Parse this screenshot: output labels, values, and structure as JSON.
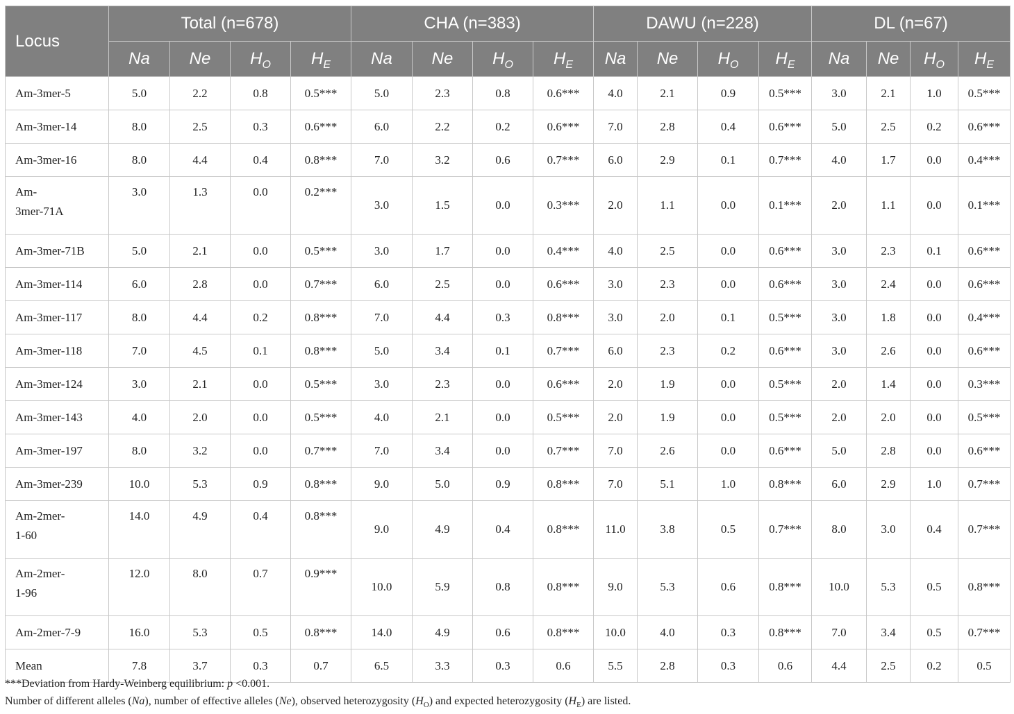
{
  "header": {
    "locus": "Locus",
    "groups": [
      "Total (n=678)",
      "CHA (n=383)",
      "DAWU (n=228)",
      "DL (n=67)"
    ],
    "sub": [
      {
        "main": "Na",
        "sub": ""
      },
      {
        "main": "Ne",
        "sub": ""
      },
      {
        "main": "H",
        "sub": "O"
      },
      {
        "main": "H",
        "sub": "E"
      }
    ]
  },
  "rows": [
    {
      "locus": "Am-3mer-5",
      "v": [
        "5.0",
        "2.2",
        "0.8",
        "0.5***",
        "5.0",
        "2.3",
        "0.8",
        "0.6***",
        "4.0",
        "2.1",
        "0.9",
        "0.5***",
        "3.0",
        "2.1",
        "1.0",
        "0.5***"
      ]
    },
    {
      "locus": "Am-3mer-14",
      "v": [
        "8.0",
        "2.5",
        "0.3",
        "0.6***",
        "6.0",
        "2.2",
        "0.2",
        "0.6***",
        "7.0",
        "2.8",
        "0.4",
        "0.6***",
        "5.0",
        "2.5",
        "0.2",
        "0.6***"
      ]
    },
    {
      "locus": "Am-3mer-16",
      "v": [
        "8.0",
        "4.4",
        "0.4",
        "0.8***",
        "7.0",
        "3.2",
        "0.6",
        "0.7***",
        "6.0",
        "2.9",
        "0.1",
        "0.7***",
        "4.0",
        "1.7",
        "0.0",
        "0.4***"
      ]
    },
    {
      "locus": "Am-\n3mer-71A",
      "v": [
        "3.0",
        "1.3",
        "0.0",
        "0.2***",
        "3.0",
        "1.5",
        "0.0",
        "0.3***",
        "2.0",
        "1.1",
        "0.0",
        "0.1***",
        "2.0",
        "1.1",
        "0.0",
        "0.1***"
      ]
    },
    {
      "locus": "Am-3mer-71B",
      "v": [
        "5.0",
        "2.1",
        "0.0",
        "0.5***",
        "3.0",
        "1.7",
        "0.0",
        "0.4***",
        "4.0",
        "2.5",
        "0.0",
        "0.6***",
        "3.0",
        "2.3",
        "0.1",
        "0.6***"
      ]
    },
    {
      "locus": "Am-3mer-114",
      "v": [
        "6.0",
        "2.8",
        "0.0",
        "0.7***",
        "6.0",
        "2.5",
        "0.0",
        "0.6***",
        "3.0",
        "2.3",
        "0.0",
        "0.6***",
        "3.0",
        "2.4",
        "0.0",
        "0.6***"
      ]
    },
    {
      "locus": "Am-3mer-117",
      "v": [
        "8.0",
        "4.4",
        "0.2",
        "0.8***",
        "7.0",
        "4.4",
        "0.3",
        "0.8***",
        "3.0",
        "2.0",
        "0.1",
        "0.5***",
        "3.0",
        "1.8",
        "0.0",
        "0.4***"
      ]
    },
    {
      "locus": "Am-3mer-118",
      "v": [
        "7.0",
        "4.5",
        "0.1",
        "0.8***",
        "5.0",
        "3.4",
        "0.1",
        "0.7***",
        "6.0",
        "2.3",
        "0.2",
        "0.6***",
        "3.0",
        "2.6",
        "0.0",
        "0.6***"
      ]
    },
    {
      "locus": "Am-3mer-124",
      "v": [
        "3.0",
        "2.1",
        "0.0",
        "0.5***",
        "3.0",
        "2.3",
        "0.0",
        "0.6***",
        "2.0",
        "1.9",
        "0.0",
        "0.5***",
        "2.0",
        "1.4",
        "0.0",
        "0.3***"
      ]
    },
    {
      "locus": "Am-3mer-143",
      "v": [
        "4.0",
        "2.0",
        "0.0",
        "0.5***",
        "4.0",
        "2.1",
        "0.0",
        "0.5***",
        "2.0",
        "1.9",
        "0.0",
        "0.5***",
        "2.0",
        "2.0",
        "0.0",
        "0.5***"
      ]
    },
    {
      "locus": "Am-3mer-197",
      "v": [
        "8.0",
        "3.2",
        "0.0",
        "0.7***",
        "7.0",
        "3.4",
        "0.0",
        "0.7***",
        "7.0",
        "2.6",
        "0.0",
        "0.6***",
        "5.0",
        "2.8",
        "0.0",
        "0.6***"
      ]
    },
    {
      "locus": "Am-3mer-239",
      "v": [
        "10.0",
        "5.3",
        "0.9",
        "0.8***",
        "9.0",
        "5.0",
        "0.9",
        "0.8***",
        "7.0",
        "5.1",
        "1.0",
        "0.8***",
        "6.0",
        "2.9",
        "1.0",
        "0.7***"
      ]
    },
    {
      "locus": "Am-2mer-\n1-60",
      "v": [
        "14.0",
        "4.9",
        "0.4",
        "0.8***",
        "9.0",
        "4.9",
        "0.4",
        "0.8***",
        "11.0",
        "3.8",
        "0.5",
        "0.7***",
        "8.0",
        "3.0",
        "0.4",
        "0.7***"
      ]
    },
    {
      "locus": "Am-2mer-\n1-96",
      "v": [
        "12.0",
        "8.0",
        "0.7",
        "0.9***",
        "10.0",
        "5.9",
        "0.8",
        "0.8***",
        "9.0",
        "5.3",
        "0.6",
        "0.8***",
        "10.0",
        "5.3",
        "0.5",
        "0.8***"
      ]
    },
    {
      "locus": "Am-2mer-7-9",
      "v": [
        "16.0",
        "5.3",
        "0.5",
        "0.8***",
        "14.0",
        "4.9",
        "0.6",
        "0.8***",
        "10.0",
        "4.0",
        "0.3",
        "0.8***",
        "7.0",
        "3.4",
        "0.5",
        "0.7***"
      ]
    },
    {
      "locus": "Mean",
      "v": [
        "7.8",
        "3.7",
        "0.3",
        "0.7",
        "6.5",
        "3.3",
        "0.3",
        "0.6",
        "5.5",
        "2.8",
        "0.3",
        "0.6",
        "4.4",
        "2.5",
        "0.2",
        "0.5"
      ]
    }
  ],
  "footnote": {
    "line1_prefix": "***Deviation from Hardy-Weinberg equilibrium: ",
    "line1_p": "p",
    "line1_suffix": " <0.001.",
    "line2": [
      {
        "t": "Number of different alleles ("
      },
      {
        "t": "Na",
        "i": true
      },
      {
        "t": "), number of effective alleles ("
      },
      {
        "t": "Ne",
        "i": true
      },
      {
        "t": "), observed heterozygosity ("
      },
      {
        "t": "H",
        "i": true,
        "sub": "O"
      },
      {
        "t": ") and expected heterozygosity ("
      },
      {
        "t": "H",
        "i": true,
        "sub": "E"
      },
      {
        "t": ") are listed."
      }
    ]
  }
}
